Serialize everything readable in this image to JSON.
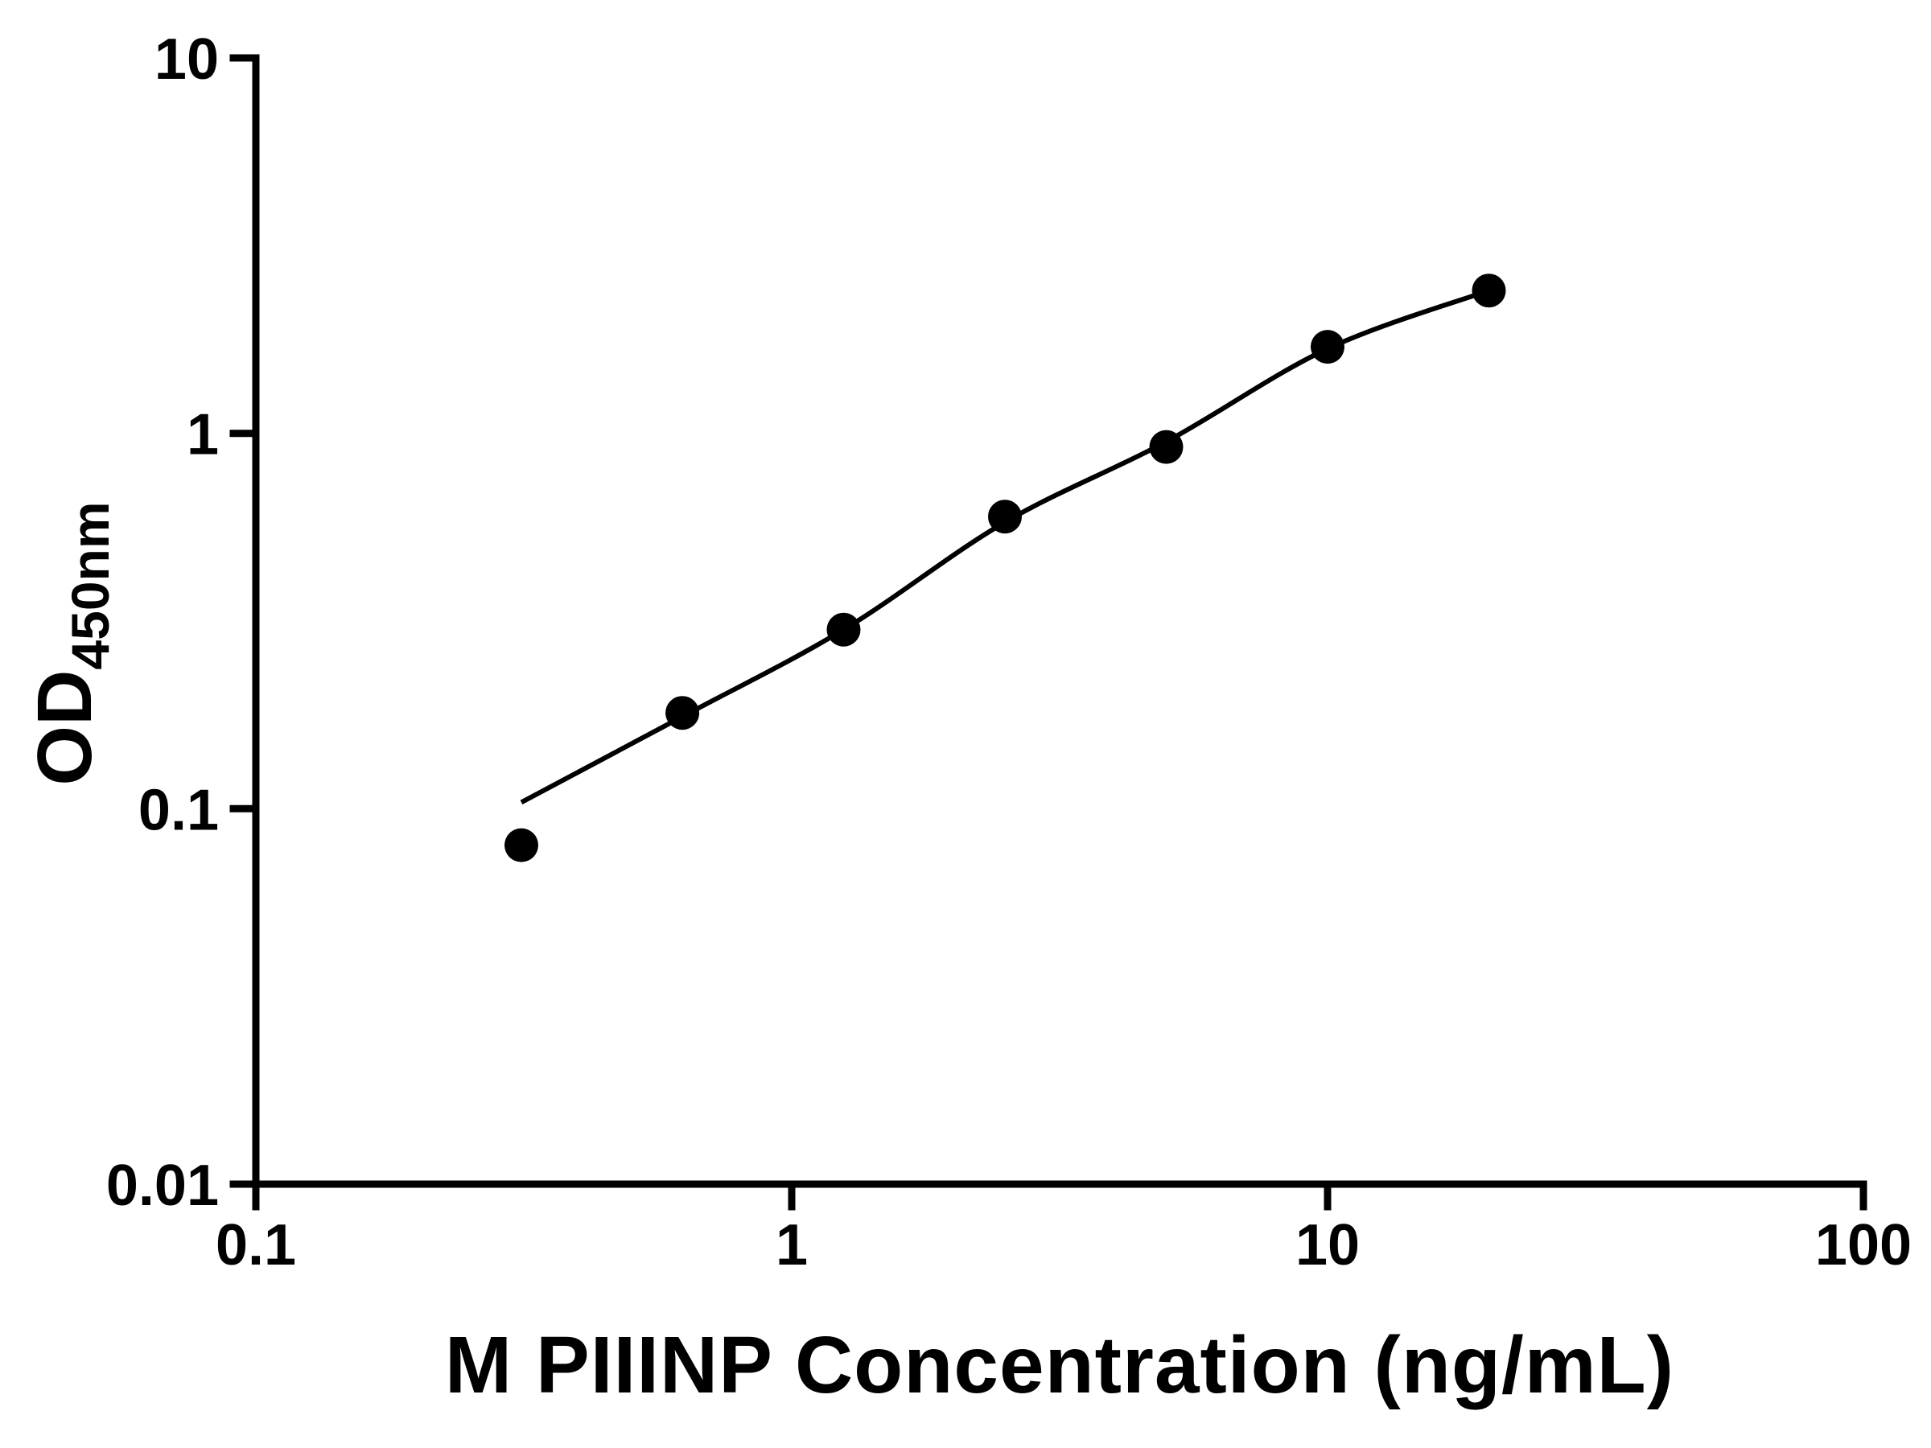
{
  "chart_data": {
    "type": "scatter",
    "title": "",
    "xlabel": "M PIIINP Concentration (ng/mL)",
    "ylabel_main": "OD",
    "ylabel_sub": "450nm",
    "x_scale": "log",
    "y_scale": "log",
    "xlim": [
      0.1,
      100
    ],
    "ylim": [
      0.01,
      10
    ],
    "grid": false,
    "legend": "none",
    "x_ticks": [
      {
        "value": 0.1,
        "label": "0.1"
      },
      {
        "value": 1,
        "label": "1"
      },
      {
        "value": 10,
        "label": "10"
      },
      {
        "value": 100,
        "label": "100"
      }
    ],
    "y_ticks": [
      {
        "value": 0.01,
        "label": "0.01"
      },
      {
        "value": 0.1,
        "label": "0.1"
      },
      {
        "value": 1,
        "label": "1"
      },
      {
        "value": 10,
        "label": "10"
      }
    ],
    "points": [
      {
        "x": 0.313,
        "y": 0.08
      },
      {
        "x": 0.625,
        "y": 0.18
      },
      {
        "x": 1.25,
        "y": 0.3
      },
      {
        "x": 2.5,
        "y": 0.6
      },
      {
        "x": 5,
        "y": 0.92
      },
      {
        "x": 10,
        "y": 1.7
      },
      {
        "x": 20,
        "y": 2.4
      }
    ],
    "curve": [
      [
        0.313,
        0.104
      ],
      [
        0.625,
        0.176
      ],
      [
        1.25,
        0.3
      ],
      [
        2.5,
        0.58
      ],
      [
        5,
        0.95
      ],
      [
        10,
        1.68
      ],
      [
        20,
        2.4
      ]
    ],
    "marker_color": "#000000",
    "line_color": "#000000",
    "axis_color": "#000000"
  }
}
